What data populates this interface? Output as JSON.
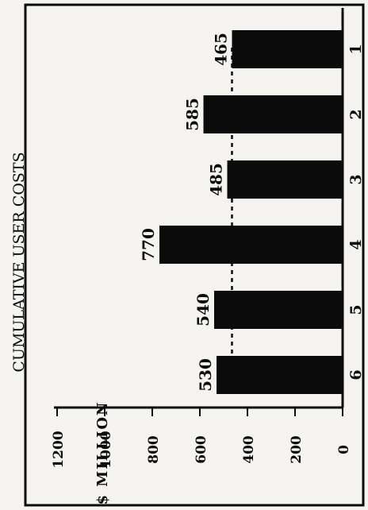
{
  "colors": {
    "paper": "#f6f4f1",
    "ink": "#0b0b0b",
    "background": "#d9d7d4"
  },
  "chart_data": {
    "type": "bar",
    "orientation": "rotated-90-ccw",
    "title": "CUMULATIVE USER COSTS",
    "ylabel": "$ MILLION",
    "xlabel": "",
    "categories": [
      "1",
      "2",
      "3",
      "4",
      "5",
      "6"
    ],
    "values": [
      465,
      585,
      485,
      770,
      540,
      530
    ],
    "value_labels": [
      "465",
      "585",
      "485",
      "770",
      "540",
      "530"
    ],
    "yticks": [
      0,
      200,
      400,
      600,
      800,
      1000,
      1200
    ],
    "ytick_labels": [
      "0",
      "200",
      "400",
      "600",
      "800",
      "1000",
      "1200"
    ],
    "ylim": [
      0,
      1200
    ],
    "reference_line": 465,
    "grid": false
  }
}
